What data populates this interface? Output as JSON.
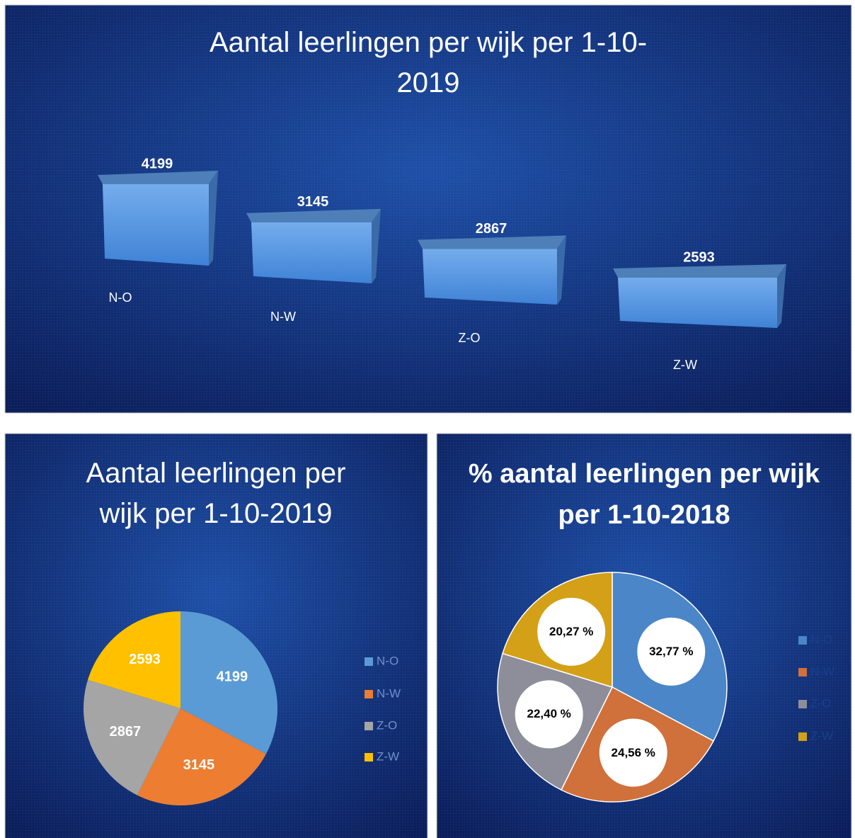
{
  "chart_data": [
    {
      "type": "bar3d",
      "title": "Aantal leerlingen per wijk per 1-10-2019",
      "categories": [
        "N-O",
        "N-W",
        "Z-O",
        "Z-W"
      ],
      "values": [
        4199,
        3145,
        2867,
        2593
      ],
      "color": "#5b9bd5"
    },
    {
      "type": "pie",
      "title": "Aantal leerlingen per wijk per 1-10-2019",
      "categories": [
        "N-O",
        "N-W",
        "Z-O",
        "Z-W"
      ],
      "values": [
        4199,
        3145,
        2867,
        2593
      ],
      "colors": [
        "#5b9bd5",
        "#ed7d31",
        "#a5a5a5",
        "#ffc000"
      ],
      "legend": "right"
    },
    {
      "type": "pie-bubble",
      "title": "% aantal leerlingen per wijk per 1-10-2018",
      "categories": [
        "N-O",
        "N-W",
        "Z-O",
        "Z-W"
      ],
      "values": [
        32.77,
        24.56,
        22.4,
        20.27
      ],
      "value_labels": [
        "32,77 %",
        "24,56 %",
        "22,40 %",
        "20,27 %"
      ],
      "colors": [
        "#4a86c8",
        "#d0703a",
        "#8e8e9a",
        "#d4a017"
      ],
      "legend": "right"
    }
  ]
}
